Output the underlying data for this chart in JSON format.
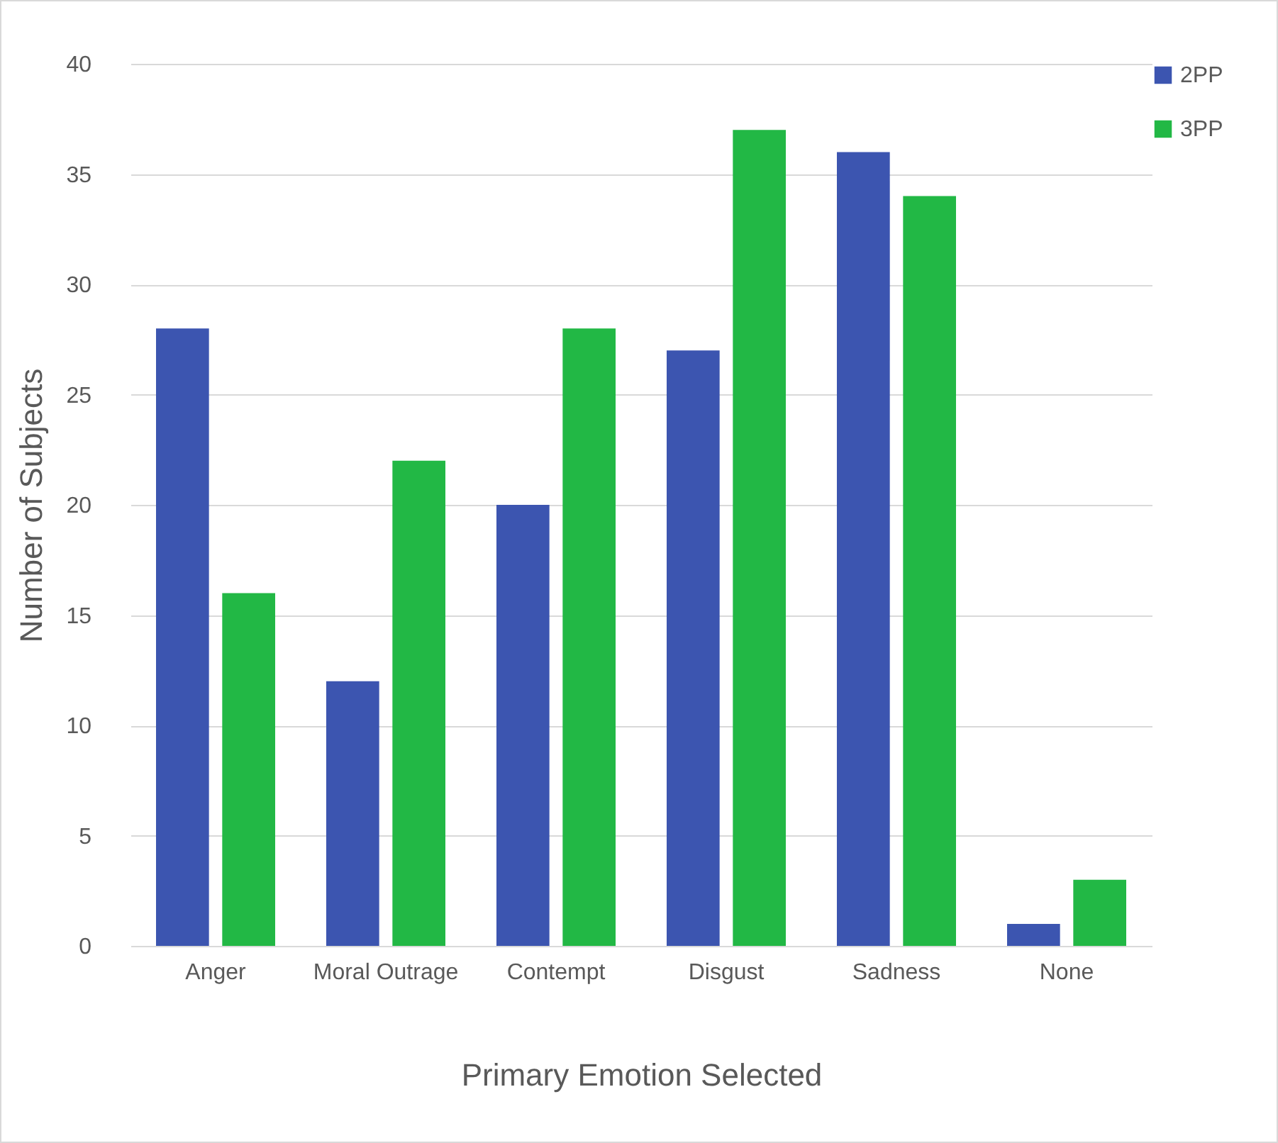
{
  "chart_data": {
    "type": "bar",
    "xlabel": "Primary Emotion Selected",
    "ylabel": "Number of Subjects",
    "categories": [
      "Anger",
      "Moral Outrage",
      "Contempt",
      "Disgust",
      "Sadness",
      "None"
    ],
    "series": [
      {
        "name": "2PP",
        "color": "#3c55b0",
        "values": [
          28,
          12,
          20,
          27,
          36,
          1
        ]
      },
      {
        "name": "3PP",
        "color": "#22b845",
        "values": [
          16,
          22,
          28,
          37,
          34,
          3
        ]
      }
    ],
    "ylim": [
      0,
      40
    ],
    "yticks": [
      0,
      5,
      10,
      15,
      20,
      25,
      30,
      35,
      40
    ],
    "grid": "y",
    "legend": "right"
  }
}
